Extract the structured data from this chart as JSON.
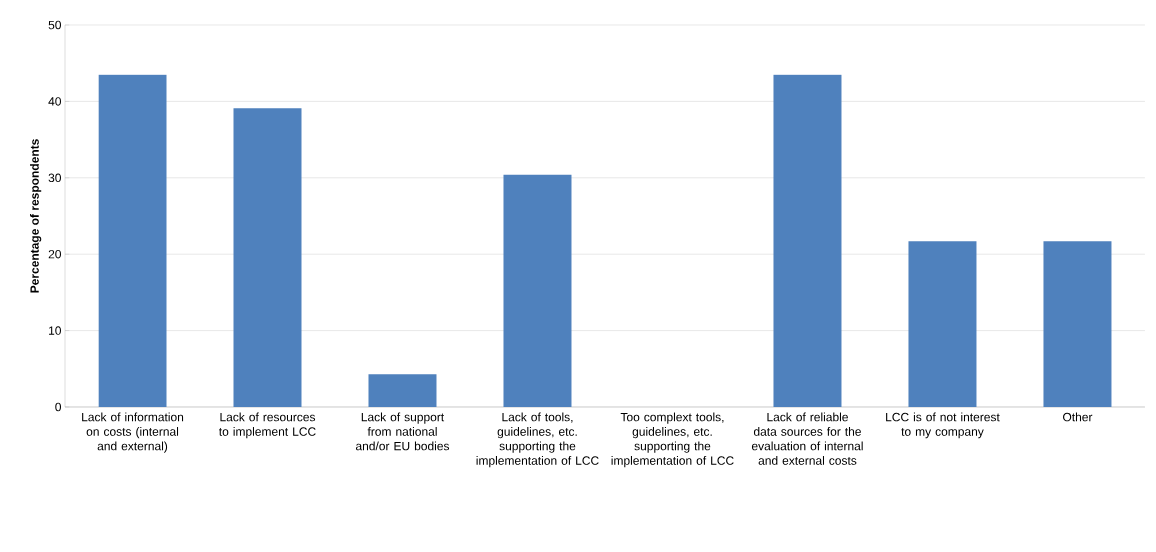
{
  "chart_data": {
    "type": "bar",
    "ylabel": "Percentage of respondents",
    "categories": [
      "Lack of information on costs (internal and external)",
      "Lack of resources to implement LCC",
      "Lack of support from national and/or EU bodies",
      "Lack of tools, guidelines, etc. supporting the implementation of LCC",
      "Too complext tools, guidelines, etc. supporting the implementation of LCC",
      "Lack of reliable data sources for the evaluation of internal and external costs",
      "LCC is of not interest to my company",
      "Other"
    ],
    "values": [
      43.5,
      39.1,
      4.3,
      30.4,
      0,
      43.5,
      21.7,
      21.7
    ],
    "color": "#4f81bd",
    "ylim": [
      0,
      50
    ],
    "yticks": [
      0,
      10,
      20,
      30,
      40,
      50
    ],
    "grid": "y"
  }
}
